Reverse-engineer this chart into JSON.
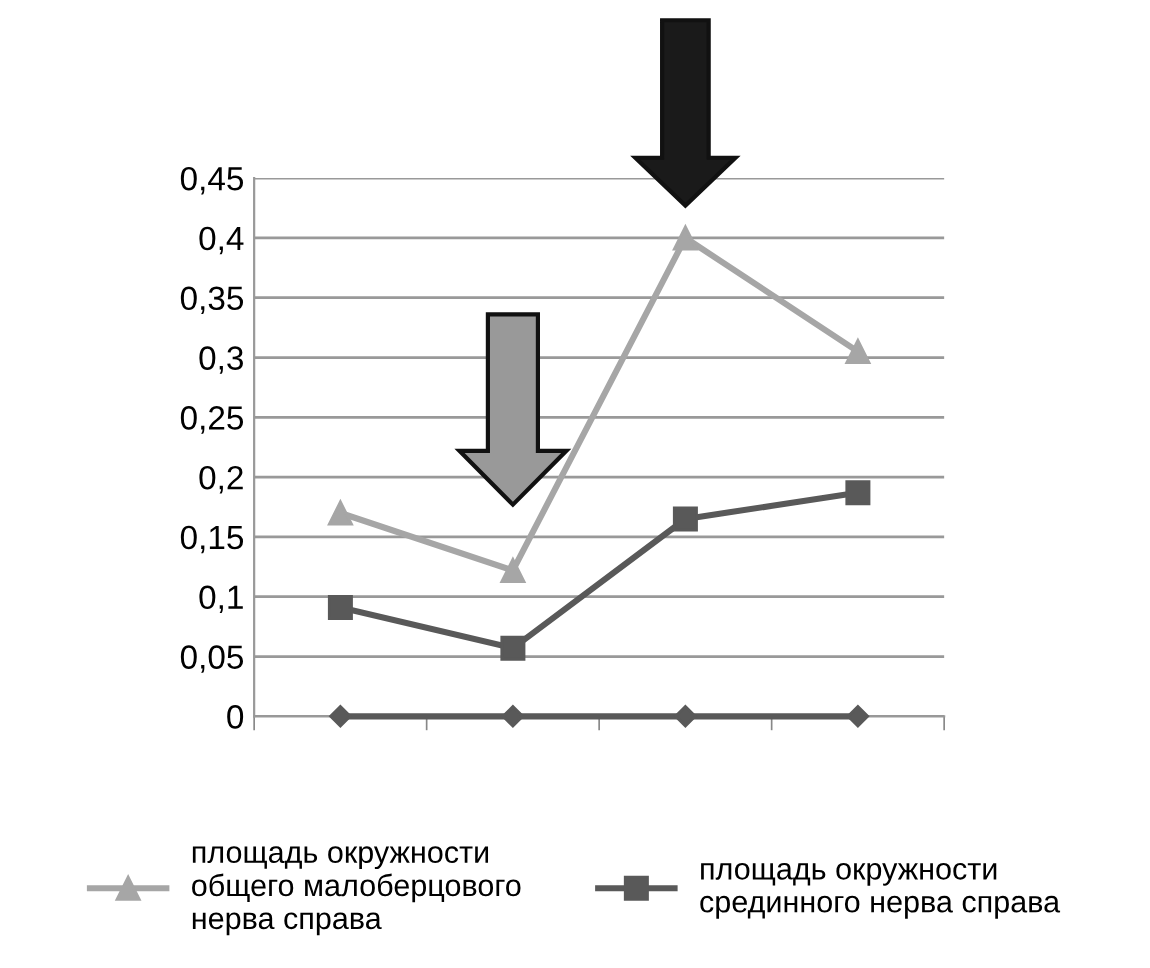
{
  "chart_data": {
    "type": "line",
    "categories": [
      null,
      null,
      null,
      null
    ],
    "series": [
      {
        "name": "площадь окружности\nобщего малоберцового\nнерва справа",
        "color": "#a6a6a6",
        "marker": "triangle",
        "values": [
          0.17,
          0.122,
          0.4,
          0.305
        ]
      },
      {
        "name": "площадь окружности\nсрединного нерва справа",
        "color": "#595959",
        "marker": "square",
        "values": [
          0.091,
          0.057,
          0.165,
          0.187
        ]
      },
      {
        "color": "#595959",
        "marker": "diamond",
        "values": [
          0,
          0,
          0,
          0
        ]
      }
    ],
    "ylim": [
      0,
      0.45
    ],
    "yticks": [
      {
        "value": 0,
        "label": "0"
      },
      {
        "value": 0.05,
        "label": "0,05"
      },
      {
        "value": 0.1,
        "label": "0,1"
      },
      {
        "value": 0.15,
        "label": "0,15"
      },
      {
        "value": 0.2,
        "label": "0,2"
      },
      {
        "value": 0.25,
        "label": "0,25"
      },
      {
        "value": 0.3,
        "label": "0,3"
      },
      {
        "value": 0.35,
        "label": "0,35"
      },
      {
        "value": 0.4,
        "label": "0,4"
      },
      {
        "value": 0.45,
        "label": "0,45"
      }
    ],
    "grid": "y",
    "legend": "bottom",
    "line_style": "solid"
  }
}
